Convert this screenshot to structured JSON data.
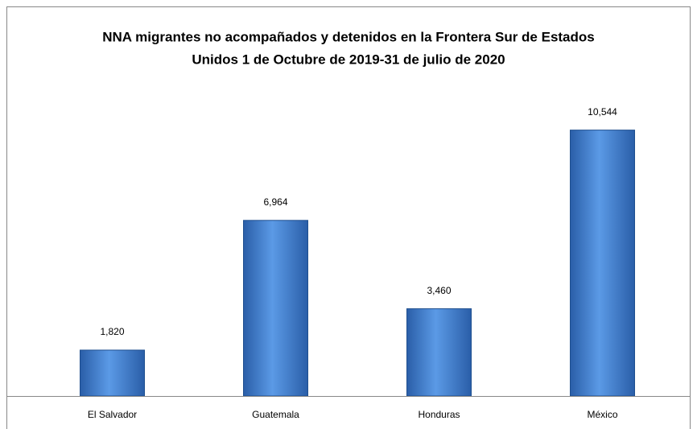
{
  "chart_data": {
    "type": "bar",
    "title": [
      "NNA migrantes no acompañados y detenidos en la Frontera Sur de Estados",
      "Unidos 1 de Octubre de 2019-31 de julio de 2020"
    ],
    "categories": [
      "El Salvador",
      "Guatemala",
      "Honduras",
      "México"
    ],
    "values": [
      1820,
      6964,
      3460,
      10544
    ],
    "value_labels": [
      "1,820",
      "6,964",
      "3,460",
      "10,544"
    ],
    "color": "#3a78c8",
    "ylim": [
      0,
      12000
    ]
  }
}
